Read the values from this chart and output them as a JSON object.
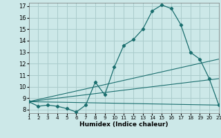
{
  "title": "",
  "xlabel": "Humidex (Indice chaleur)",
  "xlim": [
    1,
    21
  ],
  "ylim": [
    7.7,
    17.3
  ],
  "xticks": [
    1,
    2,
    3,
    4,
    5,
    6,
    7,
    8,
    9,
    10,
    11,
    12,
    13,
    14,
    15,
    16,
    17,
    18,
    19,
    20,
    21
  ],
  "yticks": [
    8,
    9,
    10,
    11,
    12,
    13,
    14,
    15,
    16,
    17
  ],
  "bg_color": "#cce8e8",
  "line_color": "#1a6e6e",
  "grid_color": "#aacccc",
  "series1_x": [
    1,
    2,
    3,
    4,
    5,
    6,
    7,
    8,
    9,
    10,
    11,
    12,
    13,
    14,
    15,
    16,
    17,
    18,
    19,
    20,
    21
  ],
  "series1_y": [
    8.7,
    8.3,
    8.4,
    8.3,
    8.1,
    7.8,
    8.4,
    10.4,
    9.3,
    11.7,
    13.6,
    14.1,
    15.0,
    16.6,
    17.1,
    16.8,
    15.4,
    13.0,
    12.4,
    10.7,
    8.4
  ],
  "series2_x": [
    1,
    21
  ],
  "series2_y": [
    8.7,
    8.4
  ],
  "series3_x": [
    1,
    21
  ],
  "series3_y": [
    8.7,
    10.7
  ],
  "series4_x": [
    1,
    21
  ],
  "series4_y": [
    8.7,
    12.4
  ]
}
